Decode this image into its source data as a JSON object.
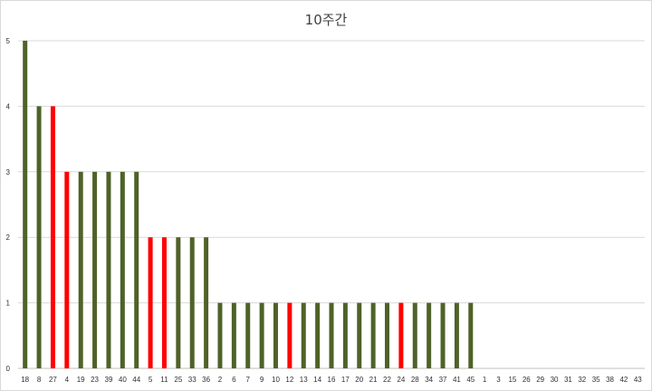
{
  "chart_data": {
    "type": "bar",
    "title": "10주간",
    "xlabel": "",
    "ylabel": "",
    "ylim": [
      0,
      5
    ],
    "yticks": [
      0,
      1,
      2,
      3,
      4,
      5
    ],
    "grid": true,
    "legend": "none",
    "colors": {
      "default": "#4f6228",
      "highlight": "#ff0000",
      "grid": "#d9d9d9",
      "axis": "#bfbfbf"
    },
    "categories": [
      "18",
      "8",
      "27",
      "4",
      "19",
      "23",
      "39",
      "40",
      "44",
      "5",
      "11",
      "25",
      "33",
      "36",
      "2",
      "6",
      "7",
      "9",
      "10",
      "12",
      "13",
      "14",
      "16",
      "17",
      "20",
      "21",
      "22",
      "24",
      "28",
      "34",
      "37",
      "41",
      "45",
      "1",
      "3",
      "15",
      "26",
      "29",
      "30",
      "31",
      "32",
      "35",
      "38",
      "42",
      "43"
    ],
    "values": [
      5,
      4,
      4,
      3,
      3,
      3,
      3,
      3,
      3,
      2,
      2,
      2,
      2,
      2,
      1,
      1,
      1,
      1,
      1,
      1,
      1,
      1,
      1,
      1,
      1,
      1,
      1,
      1,
      1,
      1,
      1,
      1,
      1,
      0,
      0,
      0,
      0,
      0,
      0,
      0,
      0,
      0,
      0,
      0,
      0
    ],
    "highlighted": [
      "27",
      "4",
      "5",
      "11",
      "12",
      "24"
    ]
  }
}
